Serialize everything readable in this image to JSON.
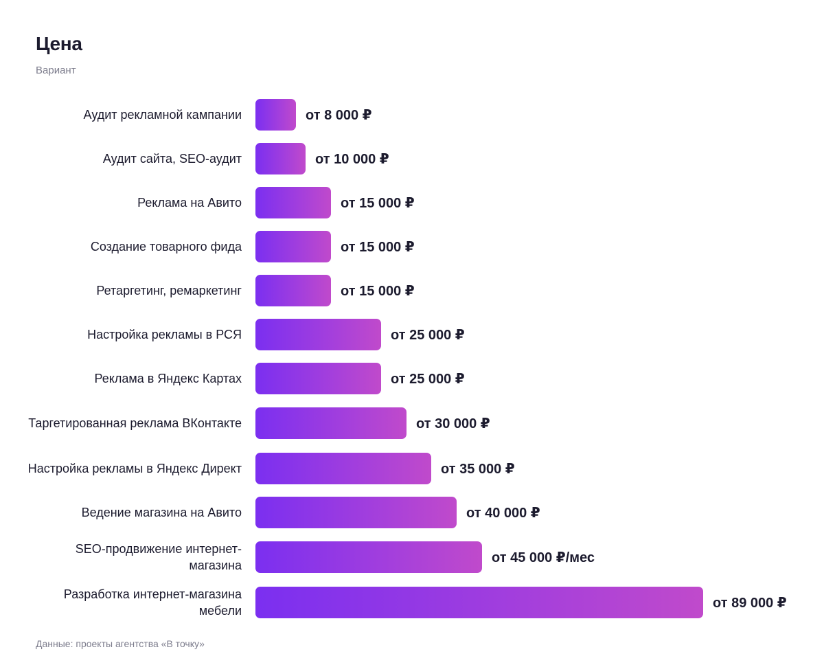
{
  "chart_data": {
    "type": "bar",
    "orientation": "horizontal",
    "title": "Цена",
    "subtitle": "Вариант",
    "categories": [
      "Аудит рекламной кампании",
      "Аудит сайта, SEO-аудит",
      "Реклама на Авито",
      "Создание товарного фида",
      "Ретаргетинг, ремаркетинг",
      "Настройка рекламы в РСЯ",
      "Реклама в Яндекс Картах",
      "Таргетированная реклама ВКонтакте",
      "Настройка рекламы в Яндекс Директ",
      "Ведение магазина на Авито",
      "SEO-продвижение интернет-магазина",
      "Разработка интернет-магазина мебели"
    ],
    "values": [
      8000,
      10000,
      15000,
      15000,
      15000,
      25000,
      25000,
      30000,
      35000,
      40000,
      45000,
      89000
    ],
    "data_labels": [
      "от 8 000 ₽",
      "от 10 000 ₽",
      "от 15 000 ₽",
      "от 15 000 ₽",
      "от 15 000 ₽",
      "от 25 000 ₽",
      "от 25 000 ₽",
      "от 30 000 ₽",
      "от 35 000 ₽",
      "от 40 000 ₽",
      "от 45 000 ₽/мес",
      "от 89 000 ₽"
    ],
    "xlim": [
      0,
      89000
    ],
    "grid": false,
    "legend": "none",
    "colors": {
      "bar_gradient_start": "#7b2ff0",
      "bar_gradient_mid": "#a43fdc",
      "bar_gradient_end": "#c04acb",
      "text": "#1c1b2e",
      "muted_text": "#7c7c8c"
    }
  },
  "footer": {
    "source": "Данные: проекты агентства «В точку»"
  }
}
